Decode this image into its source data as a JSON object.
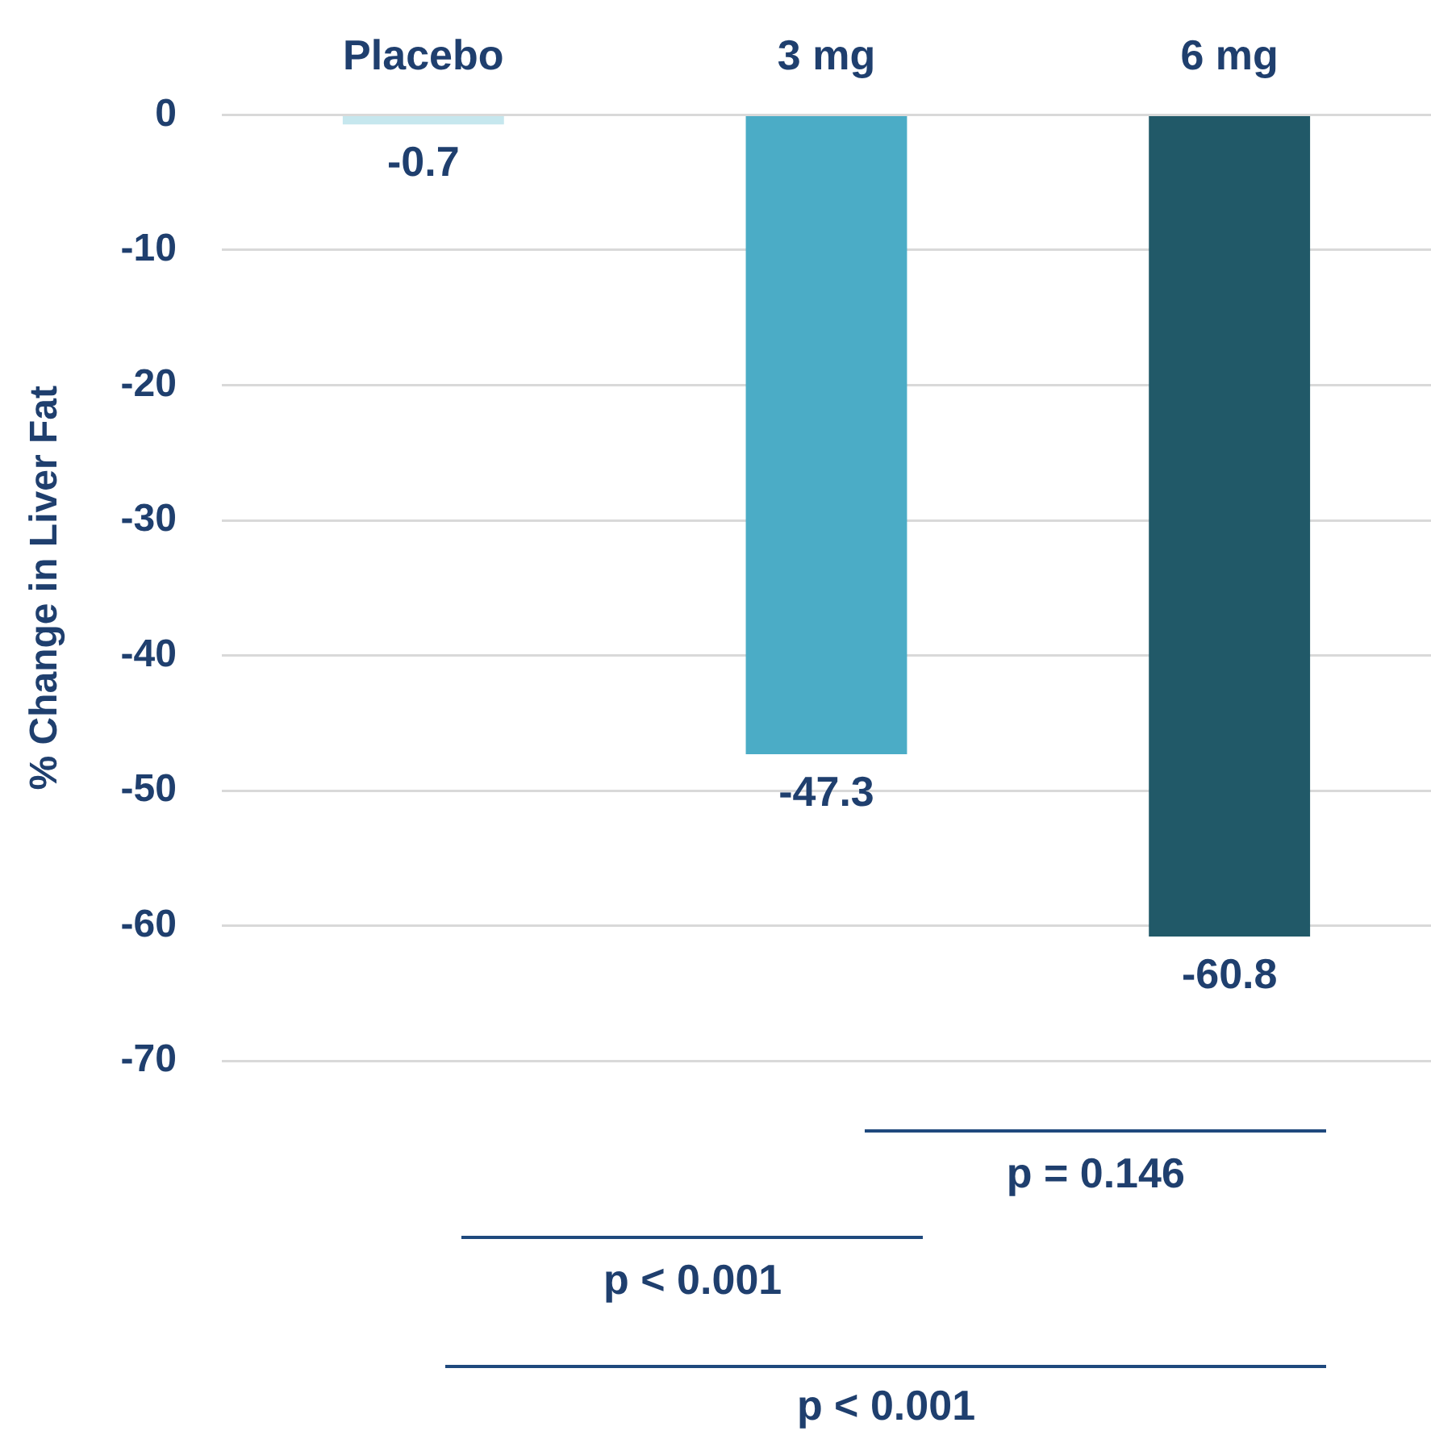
{
  "chart_data": {
    "type": "bar",
    "ylabel": "% Change in Liver Fat",
    "categories": [
      "Placebo",
      "3 mg",
      "6 mg"
    ],
    "series": [
      {
        "values": [
          -0.7,
          -47.3,
          -60.8
        ],
        "colors": [
          "#c6e7ee",
          "#4bacc6",
          "#215968"
        ]
      }
    ],
    "ylim": [
      -70,
      0
    ],
    "yticks": [
      0,
      -10,
      -20,
      -30,
      -40,
      -50,
      -60,
      -70
    ],
    "grid": "y",
    "legend": false,
    "data_labels": true,
    "annotations": [
      "p = 0.146",
      "p < 0.001",
      "p < 0.001"
    ]
  }
}
